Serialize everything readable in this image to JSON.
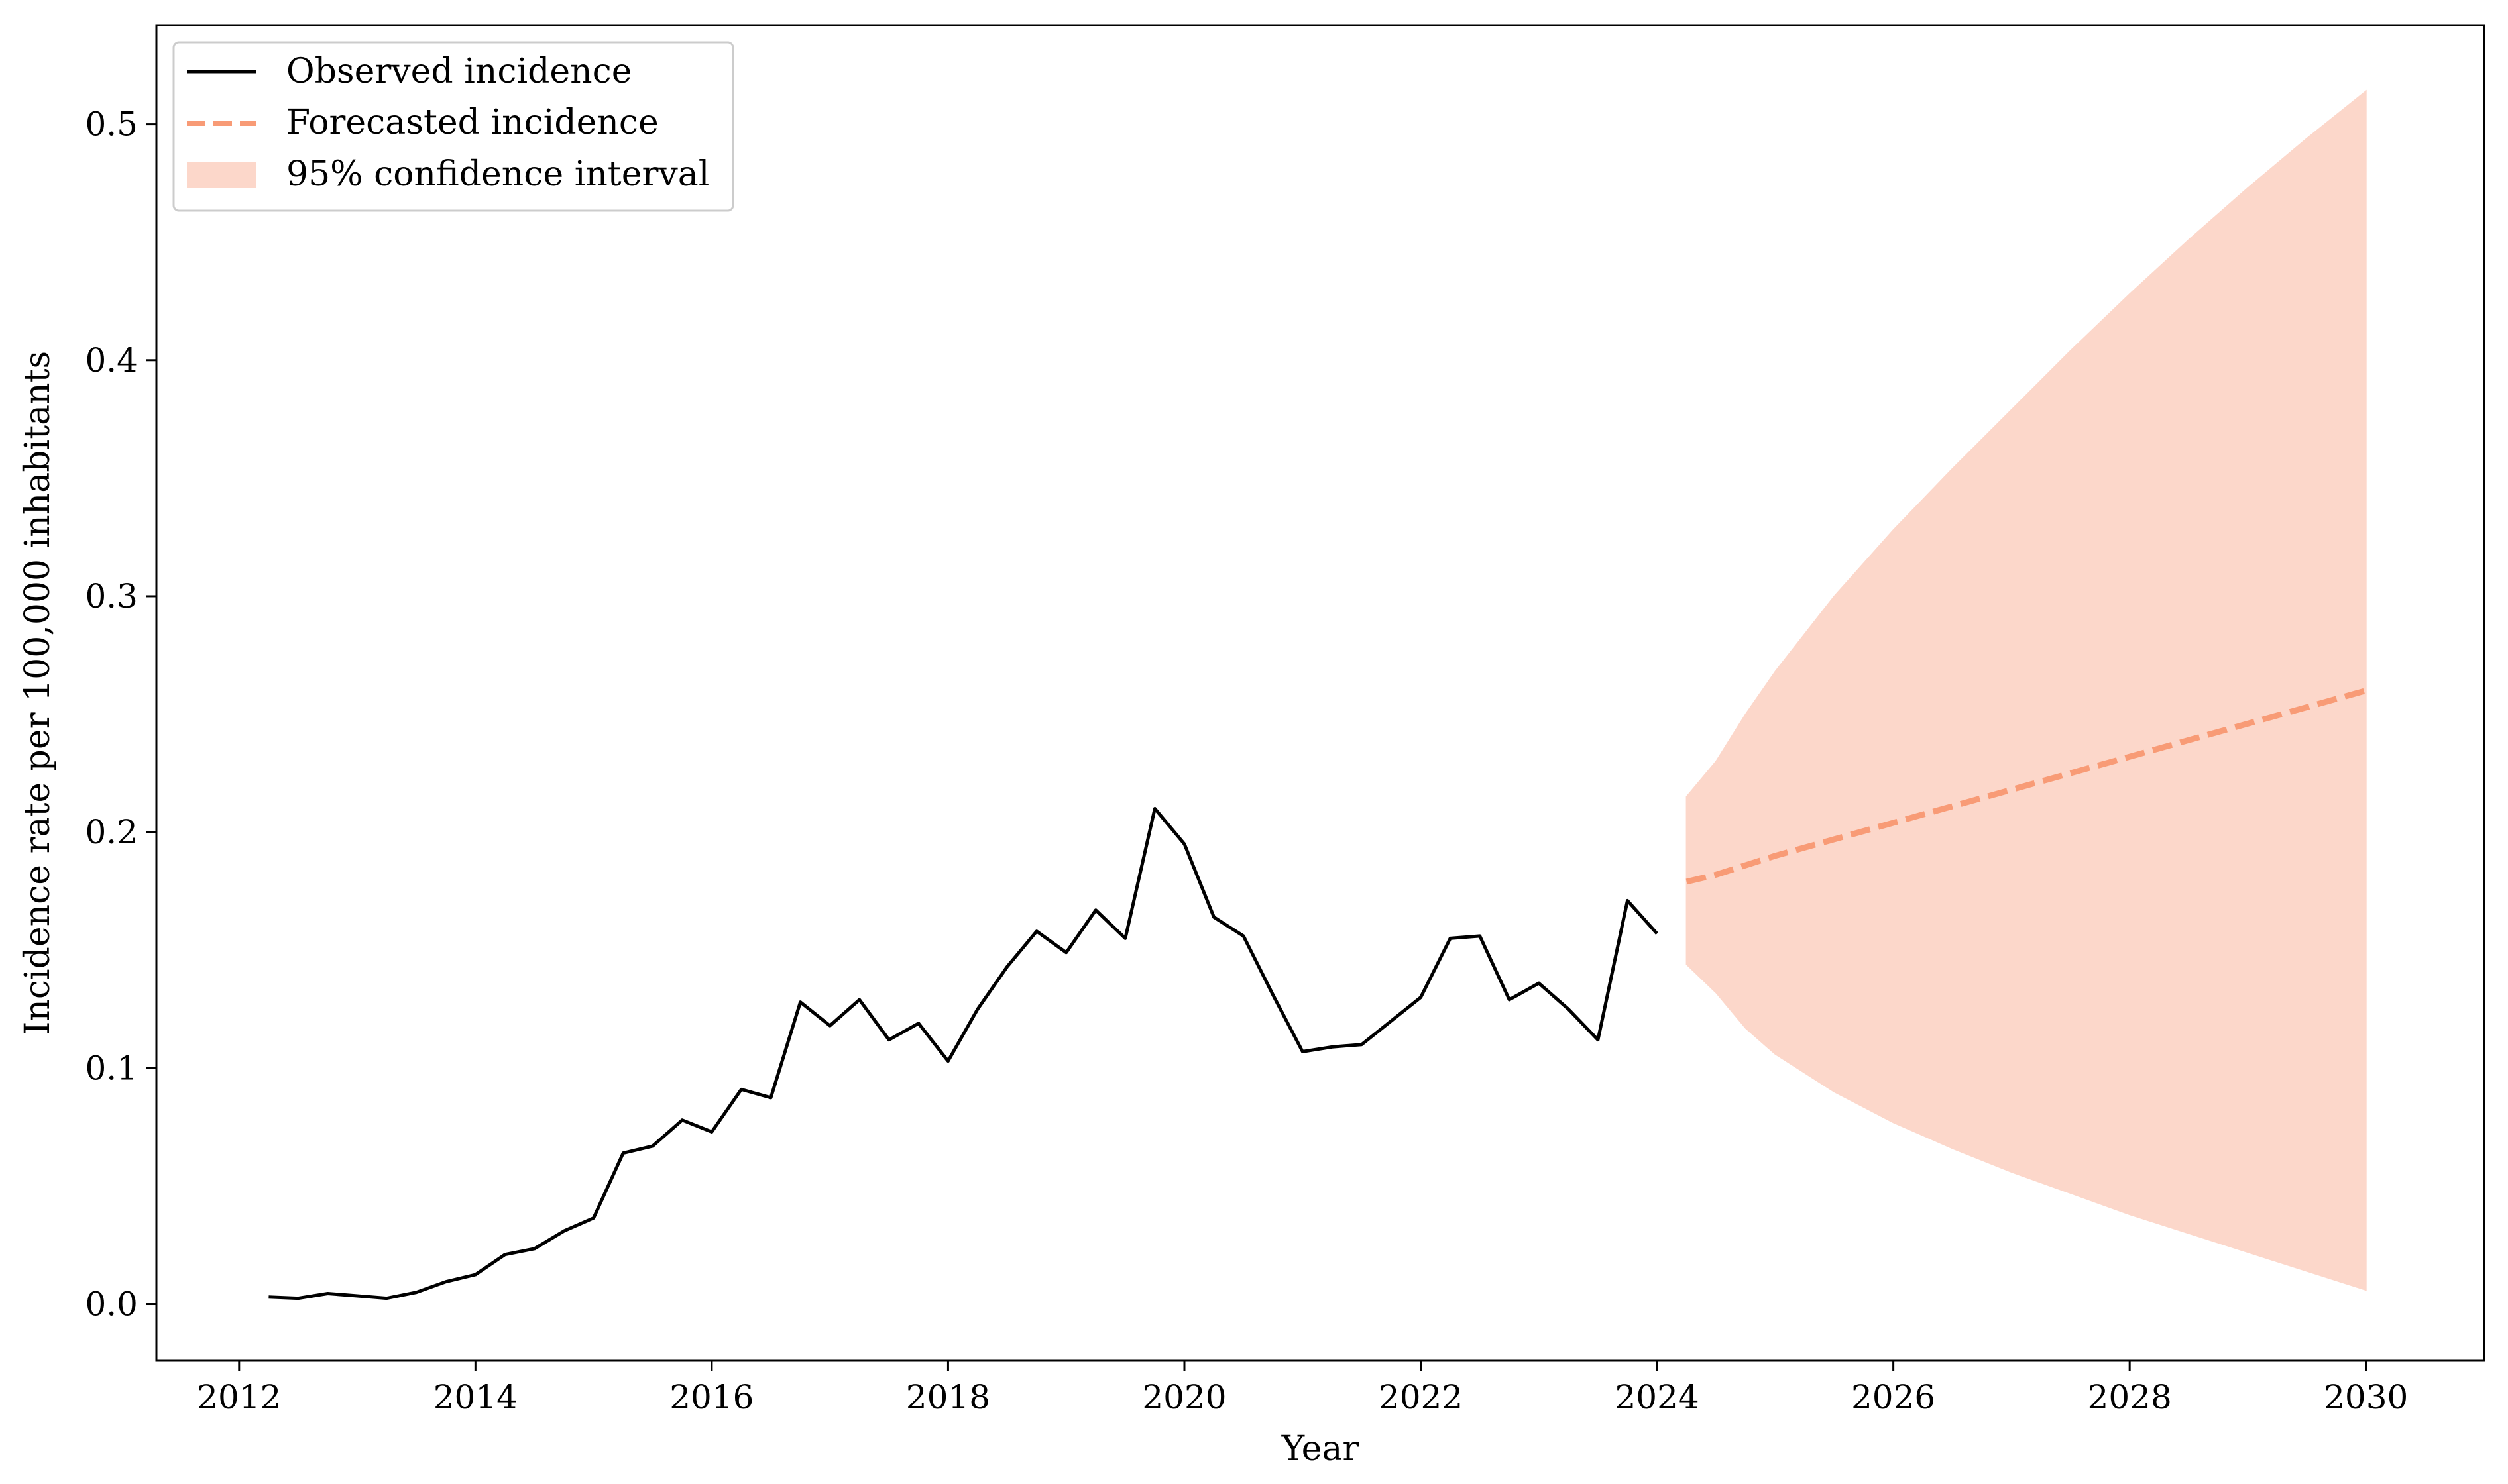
{
  "chart_data": {
    "type": "line",
    "title": "",
    "xlabel": "Year",
    "ylabel": "Incidence rate per 100,000 inhabitants",
    "xlim": [
      2011.3,
      2031.0
    ],
    "ylim": [
      -0.024,
      0.542
    ],
    "x_ticks": [
      2012,
      2014,
      2016,
      2018,
      2020,
      2022,
      2024,
      2026,
      2028,
      2030
    ],
    "x_tick_labels": [
      "2012",
      "2014",
      "2016",
      "2018",
      "2020",
      "2022",
      "2024",
      "2026",
      "2028",
      "2030"
    ],
    "y_ticks": [
      0.0,
      0.1,
      0.2,
      0.3,
      0.4,
      0.5
    ],
    "y_tick_labels": [
      "0.0",
      "0.1",
      "0.2",
      "0.3",
      "0.4",
      "0.5"
    ],
    "grid": false,
    "legend_position": "top-left",
    "series": [
      {
        "name": "Observed incidence",
        "style": "solid",
        "color": "#000000",
        "x": [
          2012.25,
          2012.5,
          2012.75,
          2013.0,
          2013.25,
          2013.5,
          2013.75,
          2014.0,
          2014.25,
          2014.5,
          2014.75,
          2015.0,
          2015.25,
          2015.5,
          2015.75,
          2016.0,
          2016.25,
          2016.5,
          2016.75,
          2017.0,
          2017.25,
          2017.5,
          2017.75,
          2018.0,
          2018.25,
          2018.5,
          2018.75,
          2019.0,
          2019.25,
          2019.5,
          2019.75,
          2020.0,
          2020.25,
          2020.5,
          2020.75,
          2021.0,
          2021.25,
          2021.5,
          2021.75,
          2022.0,
          2022.25,
          2022.5,
          2022.75,
          2023.0,
          2023.25,
          2023.5,
          2023.75,
          2024.0
        ],
        "y": [
          0.003,
          0.0025,
          0.0045,
          0.0035,
          0.0025,
          0.005,
          0.0095,
          0.0125,
          0.021,
          0.0235,
          0.031,
          0.0365,
          0.064,
          0.067,
          0.078,
          0.073,
          0.091,
          0.0875,
          0.128,
          0.118,
          0.129,
          0.112,
          0.119,
          0.103,
          0.125,
          0.143,
          0.158,
          0.149,
          0.167,
          0.155,
          0.21,
          0.195,
          0.164,
          0.156,
          0.131,
          0.107,
          0.109,
          0.11,
          0.12,
          0.13,
          0.155,
          0.156,
          0.129,
          0.136,
          0.125,
          0.112,
          0.171,
          0.157
        ]
      },
      {
        "name": "Forecasted incidence",
        "style": "dashed",
        "color": "#f89b76",
        "x": [
          2024.25,
          2024.5,
          2025.0,
          2025.5,
          2026.0,
          2026.5,
          2027.0,
          2027.5,
          2028.0,
          2028.5,
          2029.0,
          2029.5,
          2030.0
        ],
        "y": [
          0.179,
          0.182,
          0.19,
          0.197,
          0.204,
          0.211,
          0.218,
          0.225,
          0.232,
          0.239,
          0.246,
          0.253,
          0.26
        ]
      }
    ],
    "band": {
      "name": "95% confidence interval",
      "color": "#fcd7ca",
      "x": [
        2024.25,
        2024.5,
        2024.75,
        2025.0,
        2025.5,
        2026.0,
        2026.5,
        2027.0,
        2027.5,
        2028.0,
        2028.5,
        2029.0,
        2029.5,
        2030.0
      ],
      "lower": [
        0.144,
        0.132,
        0.117,
        0.106,
        0.09,
        0.077,
        0.066,
        0.056,
        0.047,
        0.038,
        0.03,
        0.022,
        0.014,
        0.006
      ],
      "upper": [
        0.215,
        0.23,
        0.25,
        0.268,
        0.3,
        0.328,
        0.354,
        0.379,
        0.404,
        0.428,
        0.451,
        0.473,
        0.494,
        0.514
      ]
    }
  }
}
